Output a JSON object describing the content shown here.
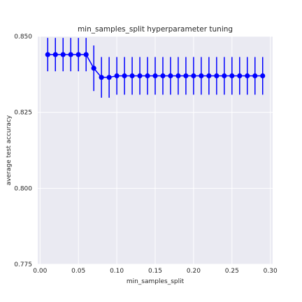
{
  "chart_data": {
    "type": "line",
    "title": "min_samples_split hyperparameter tuning",
    "xlabel": "min_samples_split",
    "ylabel": "average test accuracy",
    "xlim": [
      -0.003,
      0.303
    ],
    "ylim": [
      0.775,
      0.85
    ],
    "xticks": [
      "0.00",
      "0.05",
      "0.10",
      "0.15",
      "0.20",
      "0.25",
      "0.30"
    ],
    "yticks": [
      "0.775",
      "0.800",
      "0.825",
      "0.850"
    ],
    "grid": true,
    "colors": {
      "background": "#eaeaf2",
      "grid": "#ffffff",
      "series": "#0000ff",
      "text": "#262626"
    },
    "series": [
      {
        "x": [
          0.01,
          0.02,
          0.03,
          0.04,
          0.05,
          0.06,
          0.07,
          0.08,
          0.09,
          0.1,
          0.11,
          0.12,
          0.13,
          0.14,
          0.15,
          0.16,
          0.17,
          0.18,
          0.19,
          0.2,
          0.21,
          0.22,
          0.23,
          0.24,
          0.25,
          0.26,
          0.27,
          0.28,
          0.29
        ],
        "values": [
          0.844,
          0.844,
          0.844,
          0.844,
          0.844,
          0.844,
          0.8395,
          0.8365,
          0.8365,
          0.837,
          0.837,
          0.837,
          0.837,
          0.837,
          0.837,
          0.837,
          0.837,
          0.837,
          0.837,
          0.837,
          0.837,
          0.837,
          0.837,
          0.837,
          0.837,
          0.837,
          0.837,
          0.837,
          0.837
        ],
        "error_low": [
          0.8385,
          0.8385,
          0.8385,
          0.8385,
          0.8385,
          0.8385,
          0.832,
          0.8298,
          0.8298,
          0.8308,
          0.8308,
          0.8308,
          0.8308,
          0.8308,
          0.8308,
          0.8308,
          0.8308,
          0.8308,
          0.8308,
          0.8308,
          0.8308,
          0.8308,
          0.8308,
          0.8308,
          0.8308,
          0.8308,
          0.8308,
          0.8308,
          0.8308
        ],
        "error_high": [
          0.8495,
          0.8495,
          0.8495,
          0.8495,
          0.8495,
          0.8495,
          0.847,
          0.8432,
          0.8432,
          0.8432,
          0.8432,
          0.8432,
          0.8432,
          0.8432,
          0.8432,
          0.8432,
          0.8432,
          0.8432,
          0.8432,
          0.8432,
          0.8432,
          0.8432,
          0.8432,
          0.8432,
          0.8432,
          0.8432,
          0.8432,
          0.8432,
          0.8432
        ]
      }
    ]
  }
}
